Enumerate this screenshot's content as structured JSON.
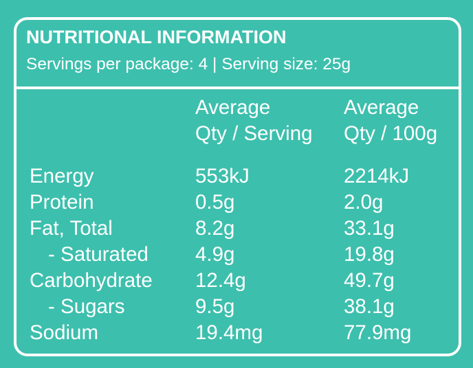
{
  "header": {
    "title": "NUTRITIONAL INFORMATION",
    "subtitle": "Servings per package: 4 | Serving size: 25g"
  },
  "table": {
    "column_headers": [
      [
        "Average",
        "Qty / Serving"
      ],
      [
        "Average",
        "Qty / 100g"
      ]
    ],
    "rows": [
      [
        "Energy",
        "553kJ",
        "2214kJ"
      ],
      [
        "Protein",
        "0.5g",
        "2.0g"
      ],
      [
        "Fat, Total",
        "8.2g",
        "33.1g"
      ],
      [
        "- Saturated",
        "4.9g",
        "19.8g"
      ],
      [
        "Carbohydrate",
        "12.4g",
        "49.7g"
      ],
      [
        "- Sugars",
        "9.5g",
        "38.1g"
      ],
      [
        "Sodium",
        "19.4mg",
        "77.9mg"
      ]
    ]
  }
}
